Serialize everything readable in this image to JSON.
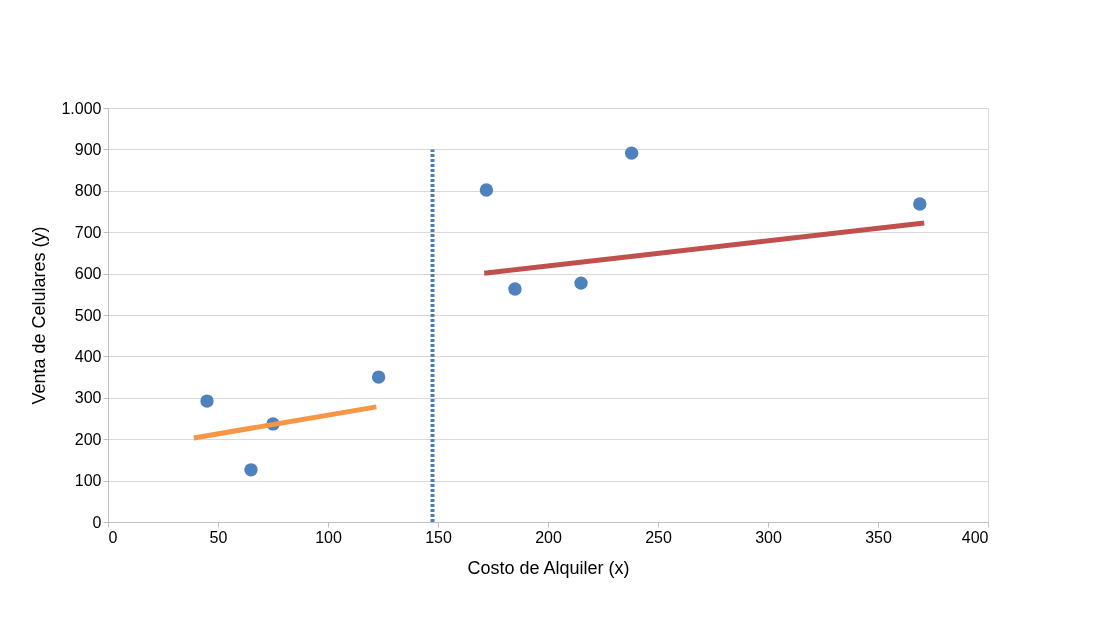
{
  "chart_data": {
    "type": "scatter",
    "xlabel": "Costo de Alquiler (x)",
    "ylabel": "Venta de Celulares (y)",
    "xlim": [
      0,
      400
    ],
    "xticks": [
      0,
      50,
      100,
      150,
      200,
      250,
      300,
      350,
      400
    ],
    "ylim": [
      0,
      1000
    ],
    "yticks": [
      0,
      100,
      200,
      300,
      400,
      500,
      600,
      700,
      800,
      900,
      {
        "value": 1000,
        "label": "1.000"
      }
    ],
    "grid": "y",
    "series": [
      {
        "marker": "circle",
        "color": "#4f81bd",
        "x": [
          45,
          65,
          75,
          123,
          172,
          185,
          215,
          238,
          369
        ],
        "values": [
          292,
          126,
          237,
          350,
          802,
          563,
          577,
          891,
          768
        ]
      },
      {
        "type": "line",
        "color": "#f79646",
        "x": [
          39,
          122
        ],
        "values": [
          203,
          278
        ],
        "line_style": "solid",
        "marker": "none"
      },
      {
        "type": "line",
        "color": "#c0504d",
        "x": [
          171,
          371
        ],
        "values": [
          601,
          722
        ],
        "line_style": "solid",
        "marker": "none"
      },
      {
        "type": "line",
        "color": "#4a7ebb",
        "x": [
          147.5,
          147.5
        ],
        "values": [
          0,
          900
        ],
        "line_style": "dotted",
        "marker": "none"
      }
    ]
  }
}
